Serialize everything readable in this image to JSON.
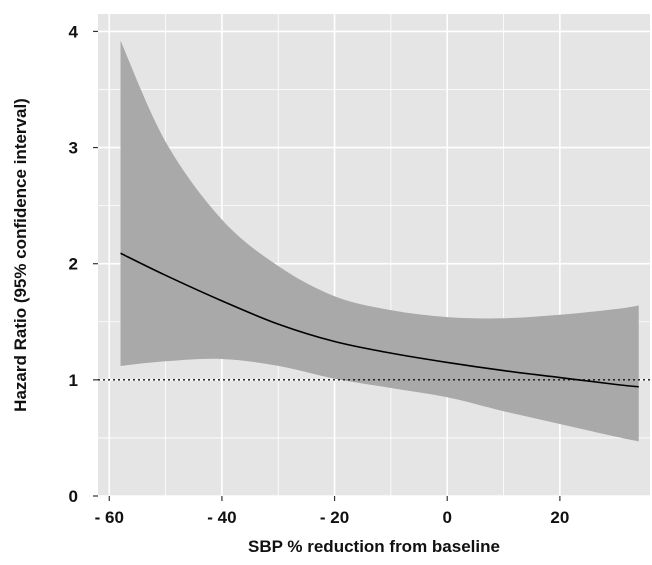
{
  "chart_data": {
    "type": "line",
    "title": "",
    "xlabel": "SBP % reduction from baseline",
    "ylabel": "Hazard Ratio (95% confidence interval)",
    "xlim": [
      -62,
      36
    ],
    "ylim": [
      0,
      4.15
    ],
    "x_ticks": [
      -60,
      -40,
      -20,
      0,
      20
    ],
    "x_tick_labels": [
      "- 60",
      "- 40",
      "- 20",
      "0",
      "20"
    ],
    "y_ticks": [
      0,
      1,
      2,
      3,
      4
    ],
    "y_tick_labels": [
      "0",
      "1",
      "2",
      "3",
      "4"
    ],
    "grid": true,
    "reference_line": {
      "y": 1,
      "style": "dotted"
    },
    "series": [
      {
        "x": [
          -58,
          -50,
          -40,
          -30,
          -20,
          -10,
          0,
          10,
          20,
          30,
          34
        ],
        "values": [
          2.09,
          1.9,
          1.68,
          1.48,
          1.33,
          1.23,
          1.15,
          1.08,
          1.02,
          0.96,
          0.94
        ],
        "lower": [
          1.12,
          1.16,
          1.18,
          1.12,
          1.01,
          0.93,
          0.85,
          0.73,
          0.62,
          0.51,
          0.47
        ],
        "upper": [
          3.92,
          3.05,
          2.38,
          1.98,
          1.72,
          1.6,
          1.54,
          1.53,
          1.56,
          1.61,
          1.64
        ]
      }
    ],
    "colors": {
      "panel": "#e5e5e5",
      "grid": "#ffffff",
      "band": "#a9a9a9",
      "line": "#000000"
    }
  }
}
